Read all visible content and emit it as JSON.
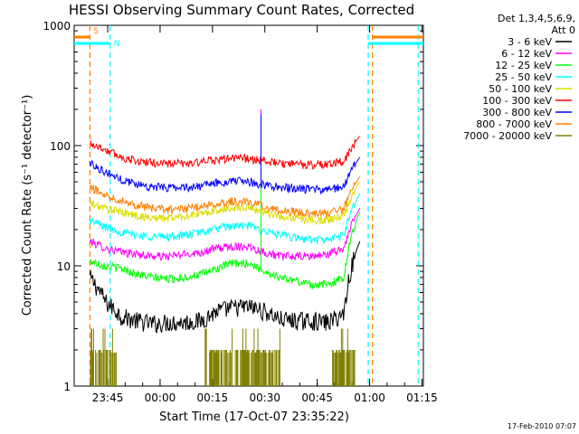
{
  "chart_data": {
    "type": "line",
    "title": "HESSI Observing Summary Count Rates, Corrected",
    "xlabel": "Start Time (17-Oct-07 23:35:22)",
    "ylabel": "Corrected Count Rate (s⁻¹ detector⁻¹)",
    "y_scale": "log",
    "ylim": [
      1,
      1000
    ],
    "yticks": [
      {
        "value": 1,
        "label": "1"
      },
      {
        "value": 10,
        "label": "10"
      },
      {
        "value": 100,
        "label": "100"
      },
      {
        "value": 1000,
        "label": "1000"
      }
    ],
    "xlim_minutes": [
      0,
      100
    ],
    "xticks": [
      {
        "minute": 9.6,
        "label": "23:45"
      },
      {
        "minute": 24.6,
        "label": "00:00"
      },
      {
        "minute": 39.6,
        "label": "00:15"
      },
      {
        "minute": 54.6,
        "label": "00:30"
      },
      {
        "minute": 69.6,
        "label": "00:45"
      },
      {
        "minute": 84.6,
        "label": "01:00"
      },
      {
        "minute": 99.6,
        "label": "01:15"
      }
    ],
    "legend_header": [
      "Det 1,3,4,5,6,9,",
      "Att 0"
    ],
    "legend_position": "right",
    "series": [
      {
        "name": "3 - 6 keV",
        "color": "#000000",
        "start": 4.5,
        "values": [
          8,
          5,
          3.8,
          3.5,
          3.3,
          3.4,
          3.4,
          3.5,
          4.2,
          4.5,
          4.6,
          4.2,
          3.6,
          3.5,
          3.5,
          3.4,
          4,
          16
        ]
      },
      {
        "name": "6 - 12 keV",
        "color": "#ff00ff",
        "start": 4.5,
        "values": [
          16,
          14,
          13,
          12.5,
          12,
          12,
          12.5,
          13,
          14,
          14.5,
          14.5,
          13,
          12,
          12,
          12,
          12.5,
          14,
          30
        ]
      },
      {
        "name": "12 - 25 keV",
        "color": "#00ff00",
        "start": 4.5,
        "values": [
          11,
          10,
          9.5,
          8.5,
          8,
          7.8,
          8,
          8.5,
          9.5,
          10.5,
          10.5,
          9,
          8,
          7.5,
          7,
          7,
          8,
          28
        ]
      },
      {
        "name": "25 - 50 keV",
        "color": "#00ffff",
        "start": 4.5,
        "values": [
          24,
          21,
          19,
          18,
          17.5,
          17.5,
          18,
          19,
          20.5,
          21.5,
          21.5,
          19.5,
          18,
          17,
          16.5,
          16.5,
          18,
          40
        ]
      },
      {
        "name": "50 - 100 keV",
        "color": "#dddd00",
        "start": 4.5,
        "values": [
          33,
          30,
          28,
          26,
          25,
          25,
          26,
          27,
          29,
          30.5,
          30.5,
          28,
          26,
          25,
          24,
          24,
          26,
          50
        ]
      },
      {
        "name": "100 - 300 keV",
        "color": "#ff0000",
        "start": 4.5,
        "values": [
          105,
          92,
          80,
          74,
          72,
          71,
          71,
          73,
          76,
          79,
          78,
          74,
          71,
          70,
          69,
          70,
          74,
          120
        ]
      },
      {
        "name": "300 - 800 keV",
        "color": "#0000ff",
        "start": 4.5,
        "values": [
          72,
          60,
          52,
          48,
          45,
          45,
          45,
          46,
          49,
          51,
          50,
          47,
          45,
          44,
          43,
          43,
          46,
          80
        ]
      },
      {
        "name": "800 - 7000 keV",
        "color": "#ff8000",
        "start": 4.5,
        "values": [
          45,
          39,
          35,
          32,
          30,
          29.5,
          30,
          31,
          33,
          34.5,
          34,
          31,
          29,
          28,
          27.5,
          27.5,
          30,
          55
        ]
      },
      {
        "name": "7000 - 20000 keV",
        "color": "#808000",
        "start": 4.5,
        "values": []
      }
    ],
    "attenuator_bars": [
      {
        "label": "S",
        "color": "#ff8000",
        "segments": [
          [
            0,
            4.5
          ],
          [
            85.4,
            100
          ]
        ]
      },
      {
        "label": "N",
        "color": "#00ffff",
        "segments": [
          [
            0,
            10.3
          ],
          [
            84.2,
            100
          ]
        ]
      }
    ],
    "vertical_markers": [
      {
        "color": "#ff8000",
        "minute": 4.5
      },
      {
        "color": "#00ffff",
        "minute": 10.3
      },
      {
        "color": "#ff8000",
        "minute": 85.4
      },
      {
        "color": "#00ffff",
        "minute": 84.2
      },
      {
        "color": "#00ffff",
        "minute": 98.5
      }
    ],
    "spike": {
      "minute": 53.5,
      "values": {
        "#ff00ff": 200,
        "#0000ff": 180,
        "#00ff00": 75
      }
    }
  },
  "footer": {
    "timestamp": "17-Feb-2010 07:07"
  }
}
